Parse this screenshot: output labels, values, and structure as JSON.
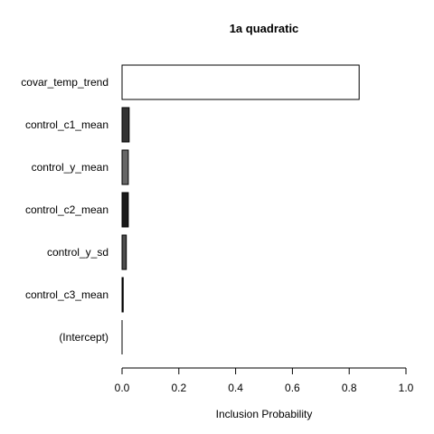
{
  "chart_data": {
    "type": "bar",
    "orientation": "horizontal",
    "title": "1a quadratic",
    "xlabel": "Inclusion Probability",
    "ylabel": "",
    "xlim": [
      0,
      1
    ],
    "xticks": [
      "0.0",
      "0.2",
      "0.4",
      "0.6",
      "0.8",
      "1.0"
    ],
    "categories": [
      "covar_temp_trend",
      "control_c1_mean",
      "control_y_mean",
      "control_c2_mean",
      "control_y_sd",
      "control_c3_mean",
      "(Intercept)"
    ],
    "values": [
      0.835,
      0.025,
      0.022,
      0.022,
      0.015,
      0.004,
      0.0
    ],
    "bar_colors": [
      "#ffffff",
      "#333333",
      "#666666",
      "#1a1a1a",
      "#4d4d4d",
      "#000000",
      "#000000"
    ],
    "bar_border": "#000000",
    "grid": false,
    "legend": "none"
  }
}
